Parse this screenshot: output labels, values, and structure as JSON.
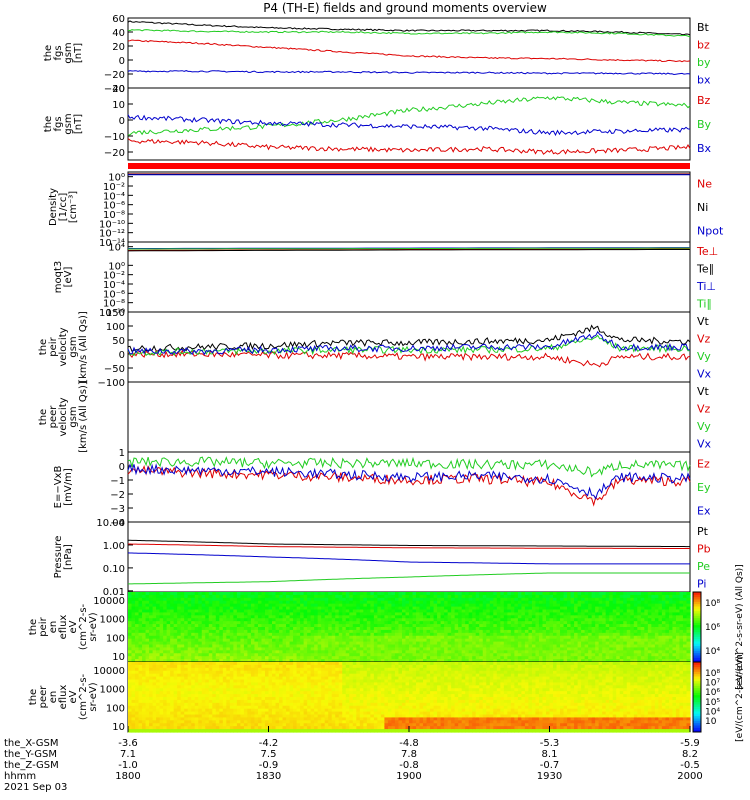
{
  "title": "P4 (TH-E) fields and ground moments overview",
  "colors": {
    "black": "#000000",
    "red": "#dd0000",
    "green": "#22cc22",
    "blue": "#0000cc"
  },
  "chart_data": [
    {
      "type": "line",
      "panel": "fgs_gsm",
      "ylabel": [
        "the",
        "fgs",
        "gsm",
        "[nT]"
      ],
      "ylim": [
        -40,
        60
      ],
      "yticks": [
        "60",
        "40",
        "20",
        "0",
        "−20",
        "−40"
      ],
      "ytick_values": [
        60,
        40,
        20,
        0,
        -20,
        -40
      ],
      "x": [
        1800,
        1815,
        1830,
        1845,
        1900,
        1915,
        1930,
        1945,
        2000
      ],
      "series": [
        {
          "name": "Bt",
          "color": "#000000",
          "values": [
            55,
            50,
            46,
            44,
            42,
            42,
            42,
            40,
            36
          ]
        },
        {
          "name": "bz",
          "color": "#dd0000",
          "values": [
            28,
            24,
            18,
            12,
            6,
            3,
            2,
            0,
            -2
          ]
        },
        {
          "name": "by",
          "color": "#22cc22",
          "values": [
            43,
            41,
            40,
            40,
            38,
            38,
            40,
            38,
            34
          ]
        },
        {
          "name": "bx",
          "color": "#0000cc",
          "values": [
            -16,
            -16,
            -17,
            -17,
            -18,
            -18,
            -19,
            -19,
            -20
          ]
        }
      ],
      "legend": [
        "Bt",
        "bz",
        "by",
        "bx"
      ]
    },
    {
      "type": "line",
      "panel": "fgs_gsm_zoom",
      "ylabel": [
        "the",
        "fgs",
        "gsm",
        "[nT]"
      ],
      "ylim": [
        -25,
        20
      ],
      "yticks": [
        "20",
        "10",
        "0",
        "−10",
        "−20"
      ],
      "ytick_values": [
        20,
        10,
        0,
        -10,
        -20
      ],
      "x": [
        1800,
        1815,
        1830,
        1845,
        1900,
        1915,
        1930,
        1945,
        2000
      ],
      "series": [
        {
          "name": "Bz",
          "color": "#dd0000",
          "values": [
            -13,
            -14,
            -17,
            -18,
            -19,
            -18,
            -20,
            -19,
            -17
          ]
        },
        {
          "name": "By",
          "color": "#22cc22",
          "values": [
            -8,
            -6,
            -4,
            0,
            6,
            10,
            14,
            11,
            9
          ]
        },
        {
          "name": "Bx",
          "color": "#0000cc",
          "values": [
            2,
            0,
            -2,
            -3,
            -4,
            -5,
            -8,
            -7,
            -6
          ]
        }
      ],
      "legend": [
        "Bz",
        "By",
        "Bx"
      ]
    },
    {
      "type": "line",
      "panel": "density",
      "ylabel": [
        "Density",
        "[1/cc]",
        "[cm⁻³]"
      ],
      "ylim_log": [
        -14,
        1
      ],
      "yticks": [
        "10⁰",
        "10⁻²",
        "10⁻⁴",
        "10⁻⁶",
        "10⁻⁸",
        "10⁻¹⁰",
        "10⁻¹²",
        "10⁻¹⁴"
      ],
      "ytick_values": [
        0,
        -2,
        -4,
        -6,
        -8,
        -10,
        -12,
        -14
      ],
      "x": [
        1800,
        1900,
        2000
      ],
      "series": [
        {
          "name": "Ne",
          "color": "#dd0000",
          "values": [
            0.6,
            0.6,
            0.6
          ]
        },
        {
          "name": "Ni",
          "color": "#000000",
          "values": [
            0.5,
            0.5,
            0.5
          ]
        },
        {
          "name": "Npot",
          "color": "#0000cc",
          "values": [
            0.4,
            0.4,
            0.4
          ]
        }
      ],
      "legend": [
        "Ne",
        "Ni",
        "Npot"
      ]
    },
    {
      "type": "line",
      "panel": "temperature",
      "ylabel": [
        "moqt3",
        "[eV]"
      ],
      "ylim_log": [
        -10,
        5
      ],
      "yticks": [
        "10⁴",
        "10⁰",
        "10⁻²",
        "10⁻⁴",
        "10⁻⁶",
        "10⁻⁸",
        "10⁻¹⁰"
      ],
      "ytick_values": [
        4,
        0,
        -2,
        -4,
        -6,
        -8,
        -10
      ],
      "x": [
        1800,
        1900,
        2000
      ],
      "series": [
        {
          "name": "Te⊥",
          "color": "#dd0000",
          "values": [
            3.2,
            3.4,
            3.5
          ]
        },
        {
          "name": "Te∥",
          "color": "#000000",
          "values": [
            3.1,
            3.3,
            3.4
          ]
        },
        {
          "name": "Ti⊥",
          "color": "#0000cc",
          "values": [
            3.6,
            3.7,
            3.8
          ]
        },
        {
          "name": "Ti∥",
          "color": "#22cc22",
          "values": [
            3.5,
            3.6,
            3.7
          ]
        }
      ],
      "legend": [
        "Te⊥",
        "Te∥",
        "Ti⊥",
        "Ti∥"
      ]
    },
    {
      "type": "line",
      "panel": "peir_velocity",
      "ylabel": [
        "the",
        "peir",
        "velocity",
        "gsm",
        "[km/s (All Qs)]"
      ],
      "ylim": [
        -100,
        150
      ],
      "yticks": [
        "150",
        "100",
        "50",
        "0",
        "−50",
        "−100"
      ],
      "ytick_values": [
        150,
        100,
        50,
        0,
        -50,
        -100
      ],
      "x": [
        1800,
        1815,
        1830,
        1845,
        1900,
        1915,
        1930,
        1940,
        1945,
        2000
      ],
      "series": [
        {
          "name": "Vt",
          "color": "#000000",
          "values": [
            20,
            25,
            30,
            40,
            40,
            45,
            50,
            95,
            50,
            45
          ]
        },
        {
          "name": "Vz",
          "color": "#dd0000",
          "values": [
            0,
            0,
            -5,
            -5,
            -10,
            -10,
            -10,
            -40,
            -10,
            -10
          ]
        },
        {
          "name": "Vy",
          "color": "#22cc22",
          "values": [
            5,
            10,
            10,
            15,
            15,
            15,
            20,
            60,
            20,
            20
          ]
        },
        {
          "name": "Vx",
          "color": "#0000cc",
          "values": [
            10,
            10,
            15,
            20,
            20,
            25,
            25,
            70,
            25,
            25
          ]
        }
      ],
      "legend": [
        "Vt",
        "Vz",
        "Vy",
        "Vx"
      ]
    },
    {
      "type": "line",
      "panel": "peer_velocity",
      "ylabel": [
        "the",
        "peer",
        "velocity",
        "gsm",
        "[km/s (All Qs)]"
      ],
      "series": [],
      "legend": [
        "Vt",
        "Vz",
        "Vy",
        "Vx"
      ],
      "legend_colors": [
        "#000000",
        "#dd0000",
        "#22cc22",
        "#0000cc"
      ]
    },
    {
      "type": "line",
      "panel": "efield",
      "ylabel": [
        "E=−VxB",
        "[mV/m]"
      ],
      "ylim": [
        -4,
        1
      ],
      "yticks": [
        "1",
        "0",
        "−1",
        "−2",
        "−3",
        "−4"
      ],
      "ytick_values": [
        1,
        0,
        -1,
        -2,
        -3,
        -4
      ],
      "x": [
        1800,
        1815,
        1830,
        1845,
        1900,
        1915,
        1930,
        1940,
        1945,
        2000
      ],
      "series": [
        {
          "name": "Ez",
          "color": "#dd0000",
          "values": [
            -0.3,
            -0.5,
            -0.6,
            -0.8,
            -1.0,
            -0.9,
            -1.2,
            -2.5,
            -1.0,
            -1.1
          ]
        },
        {
          "name": "Ey",
          "color": "#22cc22",
          "values": [
            0.3,
            0.3,
            0.2,
            0.2,
            0.2,
            0.1,
            0.1,
            -0.5,
            0.1,
            0.0
          ]
        },
        {
          "name": "Ex",
          "color": "#0000cc",
          "values": [
            -0.2,
            -0.3,
            -0.4,
            -0.6,
            -0.8,
            -0.7,
            -0.9,
            -2.0,
            -0.8,
            -0.9
          ]
        }
      ],
      "legend": [
        "Ez",
        "Ey",
        "Ex"
      ]
    },
    {
      "type": "line",
      "panel": "pressure",
      "ylabel": [
        "Pressure",
        "[nPa]"
      ],
      "ylim_log": [
        -2.05,
        1
      ],
      "yticks": [
        "10.00",
        "1.00",
        "0.10",
        "0.01"
      ],
      "ytick_values": [
        1,
        0,
        -1,
        -2
      ],
      "x": [
        1800,
        1830,
        1900,
        1930,
        2000
      ],
      "series": [
        {
          "name": "Pt",
          "color": "#000000",
          "values": [
            1.6,
            1.1,
            0.95,
            0.9,
            0.85
          ]
        },
        {
          "name": "Pb",
          "color": "#dd0000",
          "values": [
            1.1,
            0.85,
            0.75,
            0.72,
            0.7
          ]
        },
        {
          "name": "Pe",
          "color": "#22cc22",
          "values": [
            0.02,
            0.025,
            0.04,
            0.06,
            0.06
          ]
        },
        {
          "name": "Pi",
          "color": "#0000cc",
          "values": [
            0.45,
            0.3,
            0.18,
            0.15,
            0.15
          ]
        }
      ],
      "legend": [
        "Pt",
        "Pb",
        "Pe",
        "Pi"
      ]
    },
    {
      "type": "heatmap",
      "panel": "peir_eflux",
      "ylabel": [
        "the",
        "peir",
        "en",
        "eflux",
        "eV",
        "(cm^2-s-",
        "sr-eV)"
      ],
      "yticks": [
        "10000",
        "1000",
        "100",
        "10"
      ],
      "colorbar_ticks": [
        "10⁸",
        "10⁶",
        "10⁴"
      ],
      "colorbar_label": "[eV/(cm^2-s-sr-eV) (All Qs)]"
    },
    {
      "type": "heatmap",
      "panel": "peer_eflux",
      "ylabel": [
        "the",
        "peer",
        "en",
        "eflux",
        "eV",
        "(cm^2-s-",
        "sr-eV)"
      ],
      "yticks": [
        "10000",
        "1000",
        "100",
        "10"
      ],
      "colorbar_ticks": [
        "10⁸",
        "10⁷",
        "10⁶",
        "10⁵",
        "10⁴",
        "10⁳"
      ],
      "colorbar_label": "[eV/(cm^2-s-sr-eV)]"
    }
  ],
  "xaxis": {
    "row_labels": [
      "the_X-GSM",
      "the_Y-GSM",
      "the_Z-GSM",
      "hhmm",
      "2021 Sep 03"
    ],
    "ticks": [
      {
        "x": "-3.6",
        "y": "7.1",
        "z": "-1.0",
        "hhmm": "1800"
      },
      {
        "x": "-4.2",
        "y": "7.5",
        "z": "-0.9",
        "hhmm": "1830"
      },
      {
        "x": "-4.8",
        "y": "7.8",
        "z": "-0.8",
        "hhmm": "1900"
      },
      {
        "x": "-5.3",
        "y": "8.1",
        "z": "-0.7",
        "hhmm": "1930"
      },
      {
        "x": "-5.9",
        "y": "8.2",
        "z": "-0.5",
        "hhmm": "2000"
      }
    ]
  }
}
